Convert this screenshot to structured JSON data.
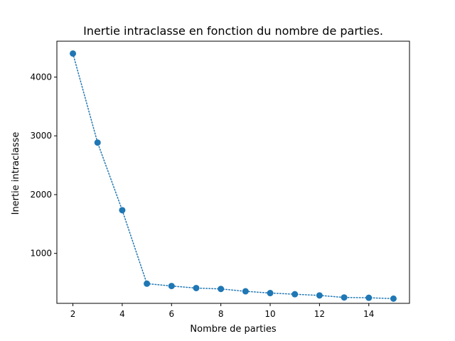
{
  "chart_data": {
    "type": "line",
    "title": "Inertie intraclasse en fonction du nombre de parties.",
    "xlabel": "Nombre de parties",
    "ylabel": "Inertie intraclasse",
    "xlim": [
      1.35,
      15.65
    ],
    "ylim": [
      150,
      4610
    ],
    "xticks": [
      2,
      4,
      6,
      8,
      10,
      12,
      14
    ],
    "yticks": [
      1000,
      2000,
      3000,
      4000
    ],
    "grid": false,
    "legend": "none",
    "line_style": "dotted",
    "marker": "circle",
    "color": "#1f77b4",
    "x": [
      2,
      3,
      4,
      5,
      6,
      7,
      8,
      9,
      10,
      11,
      12,
      13,
      14,
      15
    ],
    "y": [
      4400,
      2885,
      1735,
      485,
      445,
      410,
      395,
      355,
      325,
      305,
      285,
      250,
      245,
      230
    ]
  }
}
